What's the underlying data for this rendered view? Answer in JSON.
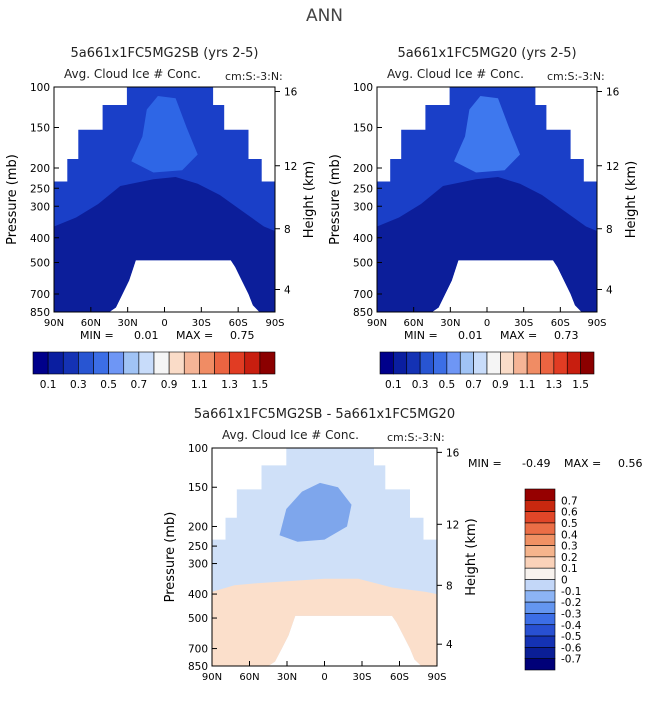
{
  "page_title": "ANN",
  "chart_data": [
    {
      "type": "heatmap",
      "title": "5a661x1FC5MG2SB (yrs 2-5)",
      "subtitle": "Avg. Cloud Ice # Conc.",
      "units": "cm:S:-3:N:",
      "ylabel": "Pressure (mb)",
      "ylabel_right": "Height (km)",
      "xticks": [
        "90N",
        "60N",
        "30N",
        "0",
        "30S",
        "60S",
        "90S"
      ],
      "yticks": [
        "100",
        "150",
        "200",
        "250",
        "300",
        "400",
        "500",
        "700",
        "850"
      ],
      "yticks_right": [
        "16",
        "12",
        "8",
        "4"
      ],
      "stats": {
        "min_label": "MIN =",
        "min": "0.01",
        "max_label": "MAX =",
        "max": "0.75"
      },
      "colorbar": {
        "colors": [
          "#00008b",
          "#0a1ea0",
          "#1432b4",
          "#2855d2",
          "#3c6ee6",
          "#6e96f5",
          "#a0c3f5",
          "#c8dcfa",
          "#f5f5f5",
          "#fadcc8",
          "#f5b496",
          "#f08c64",
          "#eb6441",
          "#e13c23",
          "#c81e0f",
          "#8b0000"
        ],
        "labels": [
          "0.1",
          "0.3",
          "0.5",
          "0.7",
          "0.9",
          "1.1",
          "1.3",
          "1.5"
        ]
      },
      "fields": {
        "outer": "#1a3fc8",
        "band": "#0c1e9a",
        "inner": "#2e66e6"
      }
    },
    {
      "type": "heatmap",
      "title": "5a661x1FC5MG20 (yrs 2-5)",
      "subtitle": "Avg. Cloud Ice # Conc.",
      "units": "cm:S:-3:N:",
      "ylabel": "Pressure (mb)",
      "ylabel_right": "Height (km)",
      "xticks": [
        "90N",
        "60N",
        "30N",
        "0",
        "30S",
        "60S",
        "90S"
      ],
      "yticks": [
        "100",
        "150",
        "200",
        "250",
        "300",
        "400",
        "500",
        "700",
        "850"
      ],
      "yticks_right": [
        "16",
        "12",
        "8",
        "4"
      ],
      "stats": {
        "min_label": "MIN =",
        "min": "0.01",
        "max_label": "MAX =",
        "max": "0.73"
      },
      "colorbar": {
        "colors": [
          "#00008b",
          "#0a1ea0",
          "#1432b4",
          "#2855d2",
          "#3c6ee6",
          "#6e96f5",
          "#a0c3f5",
          "#c8dcfa",
          "#f5f5f5",
          "#fadcc8",
          "#f5b496",
          "#f08c64",
          "#eb6441",
          "#e13c23",
          "#c81e0f",
          "#8b0000"
        ],
        "labels": [
          "0.1",
          "0.3",
          "0.5",
          "0.7",
          "0.9",
          "1.1",
          "1.3",
          "1.5"
        ]
      },
      "fields": {
        "outer": "#1a3fc8",
        "band": "#0c1e9a",
        "inner": "#3e78ee"
      }
    },
    {
      "type": "heatmap",
      "title": "5a661x1FC5MG2SB - 5a661x1FC5MG20",
      "subtitle": "Avg. Cloud Ice # Conc.",
      "units": "cm:S:-3:N:",
      "ylabel": "Pressure (mb)",
      "ylabel_right": "Height (km)",
      "xticks": [
        "90N",
        "60N",
        "30N",
        "0",
        "30S",
        "60S",
        "90S"
      ],
      "yticks": [
        "100",
        "150",
        "200",
        "250",
        "300",
        "400",
        "500",
        "700",
        "850"
      ],
      "yticks_right": [
        "16",
        "12",
        "8",
        "4"
      ],
      "stats": {
        "min_label": "MIN =",
        "min": "-0.49",
        "max_label": "MAX =",
        "max": "0.56"
      },
      "colorbar": {
        "colors": [
          "#000078",
          "#0a1e96",
          "#1432b4",
          "#2850d2",
          "#3c6ee6",
          "#6496f0",
          "#8cb4f5",
          "#c3d7f8",
          "#f8f3ef",
          "#fad2b9",
          "#f5b48c",
          "#f09164",
          "#eb6e46",
          "#e14628",
          "#c8280f",
          "#960000"
        ],
        "labels": [
          "-0.7",
          "-0.6",
          "-0.5",
          "-0.4",
          "-0.3",
          "-0.2",
          "-0.1",
          "0",
          "0.1",
          "0.2",
          "0.3",
          "0.4",
          "0.5",
          "0.6",
          "0.7"
        ]
      },
      "fields": {
        "upper": "#cfe0f8",
        "inner": "#7ea6ec",
        "lower": "#fbdfcb"
      }
    }
  ]
}
